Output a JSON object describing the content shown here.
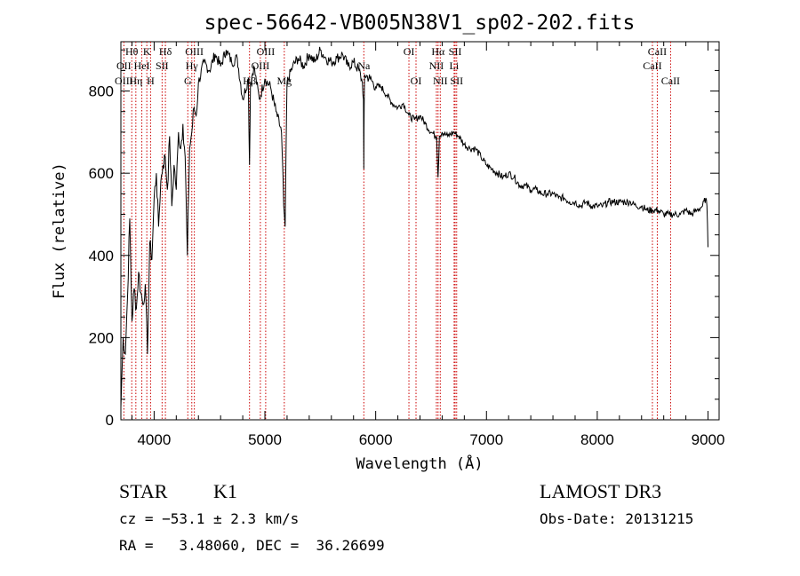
{
  "chart_data": {
    "type": "line",
    "title": "spec-56642-VB005N38V1_sp02-202.fits",
    "xlabel": "Wavelength (Å)",
    "ylabel": "Flux (relative)",
    "xlim": [
      3700,
      9100
    ],
    "ylim": [
      0,
      920
    ],
    "xticks": [
      4000,
      5000,
      6000,
      7000,
      8000,
      9000
    ],
    "yticks": [
      0,
      200,
      400,
      600,
      800
    ],
    "series": [
      {
        "name": "flux",
        "x": [
          3700,
          3720,
          3740,
          3760,
          3780,
          3800,
          3820,
          3840,
          3860,
          3880,
          3900,
          3920,
          3940,
          3960,
          3980,
          4000,
          4020,
          4040,
          4060,
          4080,
          4100,
          4120,
          4140,
          4160,
          4180,
          4200,
          4220,
          4240,
          4260,
          4280,
          4300,
          4320,
          4340,
          4360,
          4380,
          4400,
          4450,
          4500,
          4550,
          4600,
          4650,
          4700,
          4750,
          4800,
          4850,
          4861,
          4870,
          4900,
          4950,
          5000,
          5050,
          5100,
          5150,
          5170,
          5183,
          5190,
          5200,
          5250,
          5300,
          5350,
          5400,
          5450,
          5500,
          5550,
          5600,
          5650,
          5700,
          5750,
          5800,
          5850,
          5880,
          5890,
          5893,
          5896,
          5900,
          5950,
          6000,
          6050,
          6100,
          6150,
          6200,
          6250,
          6300,
          6350,
          6400,
          6450,
          6500,
          6550,
          6563,
          6575,
          6600,
          6650,
          6700,
          6750,
          6800,
          6850,
          6900,
          6950,
          7000,
          7050,
          7100,
          7150,
          7200,
          7250,
          7300,
          7350,
          7400,
          7450,
          7500,
          7550,
          7600,
          7650,
          7700,
          7750,
          7800,
          7850,
          7900,
          7950,
          8000,
          8050,
          8100,
          8150,
          8200,
          8250,
          8300,
          8350,
          8400,
          8450,
          8500,
          8550,
          8600,
          8650,
          8700,
          8750,
          8800,
          8850,
          8900,
          8950,
          8980,
          8990,
          9000
        ],
        "values": [
          30,
          200,
          160,
          300,
          490,
          240,
          320,
          270,
          360,
          310,
          280,
          330,
          160,
          430,
          390,
          540,
          600,
          470,
          580,
          620,
          640,
          560,
          690,
          520,
          620,
          560,
          700,
          660,
          720,
          640,
          400,
          660,
          700,
          760,
          740,
          820,
          870,
          850,
          890,
          860,
          900,
          870,
          880,
          780,
          830,
          620,
          820,
          860,
          780,
          830,
          810,
          750,
          700,
          520,
          470,
          640,
          820,
          860,
          880,
          860,
          890,
          870,
          900,
          880,
          870,
          880,
          890,
          860,
          870,
          850,
          820,
          780,
          610,
          760,
          840,
          830,
          810,
          810,
          790,
          770,
          760,
          770,
          740,
          730,
          740,
          720,
          700,
          690,
          590,
          690,
          700,
          690,
          700,
          690,
          670,
          660,
          660,
          640,
          620,
          610,
          600,
          590,
          600,
          590,
          570,
          570,
          560,
          560,
          550,
          550,
          550,
          540,
          540,
          530,
          530,
          520,
          530,
          520,
          520,
          520,
          530,
          530,
          530,
          530,
          530,
          520,
          520,
          510,
          510,
          510,
          500,
          500,
          500,
          500,
          510,
          500,
          510,
          520,
          540,
          520,
          420
        ]
      }
    ],
    "spectral_lines": [
      {
        "label": "Hθ",
        "wl": 3798,
        "row": 1
      },
      {
        "label": "OII",
        "wl": 3727,
        "row": 2
      },
      {
        "label": "OIII",
        "wl": 3727,
        "row": 3
      },
      {
        "label": "K",
        "wl": 3934,
        "row": 1
      },
      {
        "label": "HeI",
        "wl": 3889,
        "row": 2
      },
      {
        "label": "Hη",
        "wl": 3835,
        "row": 3
      },
      {
        "label": "H",
        "wl": 3968,
        "row": 3
      },
      {
        "label": "SII",
        "wl": 4072,
        "row": 2
      },
      {
        "label": "Hδ",
        "wl": 4102,
        "row": 1
      },
      {
        "label": "OIII",
        "wl": 4363,
        "row": 1
      },
      {
        "label": "Hγ",
        "wl": 4340,
        "row": 2
      },
      {
        "label": "G",
        "wl": 4304,
        "row": 3
      },
      {
        "label": "OIII",
        "wl": 5007,
        "row": 1
      },
      {
        "label": "OIII",
        "wl": 4959,
        "row": 2
      },
      {
        "label": "Hβ",
        "wl": 4861,
        "row": 3
      },
      {
        "label": "Mg",
        "wl": 5175,
        "row": 3
      },
      {
        "label": "Na",
        "wl": 5893,
        "row": 2
      },
      {
        "label": "OI",
        "wl": 6300,
        "row": 1
      },
      {
        "label": "OI",
        "wl": 6364,
        "row": 3
      },
      {
        "label": "Hα",
        "wl": 6563,
        "row": 1
      },
      {
        "label": "NII",
        "wl": 6548,
        "row": 2
      },
      {
        "label": "SII",
        "wl": 6717,
        "row": 1
      },
      {
        "label": "NII",
        "wl": 6583,
        "row": 3
      },
      {
        "label": "SII",
        "wl": 6731,
        "row": 3
      },
      {
        "label": "Li",
        "wl": 6708,
        "row": 2
      },
      {
        "label": "CaII",
        "wl": 8542,
        "row": 1
      },
      {
        "label": "CaII",
        "wl": 8498,
        "row": 2
      },
      {
        "label": "CaII",
        "wl": 8662,
        "row": 3
      }
    ]
  },
  "info": {
    "object_class": "STAR",
    "subclass": "K1",
    "survey": "LAMOST DR3",
    "cz": "cz = −53.1 ± 2.3 km/s",
    "obs_date": "Obs-Date: 20131215",
    "coords": "RA =   3.48060, DEC =  36.26699"
  },
  "colors": {
    "line": "#000000",
    "marker": "#cc0000"
  }
}
